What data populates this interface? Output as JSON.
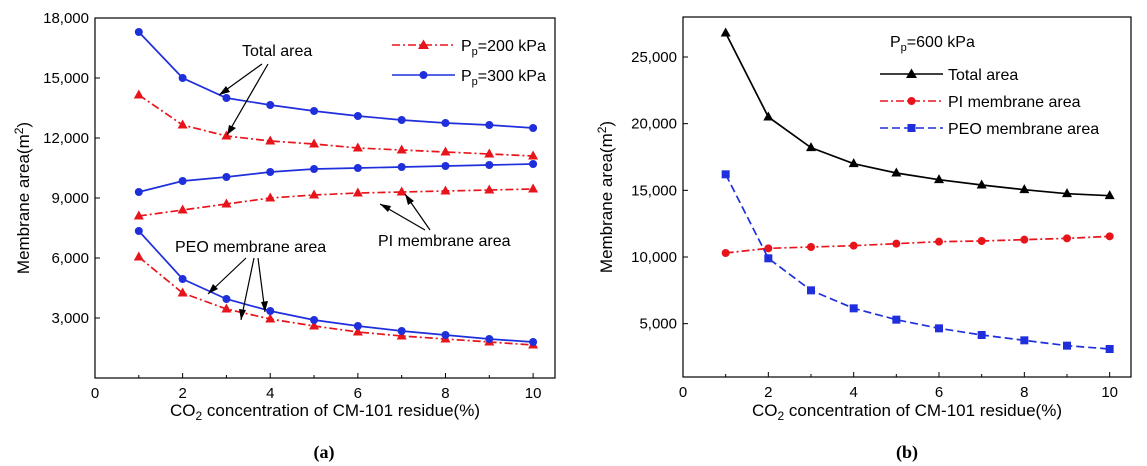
{
  "chart_data": [
    {
      "type": "line",
      "panel_label": "a",
      "xlabel_main": "CO",
      "xlabel_sub": "2",
      "xlabel_rest": " concentration of CM-101 residue(%)",
      "ylabel_main": "Membrane area(m",
      "ylabel_sup": "2",
      "ylabel_close": ")",
      "xlim": [
        0,
        10.5
      ],
      "ylim": [
        0,
        18000
      ],
      "x_ticks": [
        0,
        2,
        4,
        6,
        8,
        10
      ],
      "x_tick_labels": [
        "0",
        "2",
        "4",
        "6",
        "8",
        "10"
      ],
      "y_ticks": [
        3000,
        6000,
        9000,
        12000,
        15000,
        18000
      ],
      "y_tick_labels": [
        "3,000",
        "6,000",
        "9,000",
        "12,000",
        "15,000",
        "18,000"
      ],
      "x": [
        1,
        2,
        3,
        4,
        5,
        6,
        7,
        8,
        9,
        10
      ],
      "legend": [
        {
          "prefix": "P",
          "sub": "p",
          "text": "=200 kPa",
          "color": "#e8141c",
          "marker": "triangle",
          "dash": "8,3,2,3"
        },
        {
          "prefix": "P",
          "sub": "p",
          "text": "=300 kPa",
          "color": "#1f2fdc",
          "marker": "circle",
          "dash": ""
        }
      ],
      "series": [
        {
          "group": "Total area",
          "pressure": "200 kPa",
          "color": "#e8141c",
          "marker": "triangle",
          "dash": "8,3,2,3",
          "values": [
            14150,
            12650,
            12100,
            11850,
            11700,
            11500,
            11400,
            11300,
            11200,
            11100
          ]
        },
        {
          "group": "Total area",
          "pressure": "300 kPa",
          "color": "#1f2fdc",
          "marker": "circle",
          "dash": "",
          "values": [
            17300,
            15000,
            14000,
            13650,
            13350,
            13100,
            12900,
            12750,
            12650,
            12500
          ]
        },
        {
          "group": "PI membrane area",
          "pressure": "200 kPa",
          "color": "#e8141c",
          "marker": "triangle",
          "dash": "8,3,2,3",
          "values": [
            8100,
            8400,
            8700,
            9000,
            9150,
            9250,
            9300,
            9350,
            9400,
            9450
          ]
        },
        {
          "group": "PI membrane area",
          "pressure": "300 kPa",
          "color": "#1f2fdc",
          "marker": "circle",
          "dash": "",
          "values": [
            9300,
            9850,
            10050,
            10300,
            10450,
            10500,
            10550,
            10600,
            10650,
            10700
          ]
        },
        {
          "group": "PEO membrane area",
          "pressure": "200 kPa",
          "color": "#e8141c",
          "marker": "triangle",
          "dash": "8,3,2,3",
          "values": [
            6050,
            4250,
            3450,
            2950,
            2600,
            2300,
            2100,
            1950,
            1800,
            1650
          ]
        },
        {
          "group": "PEO membrane area",
          "pressure": "300 kPa",
          "color": "#1f2fdc",
          "marker": "circle",
          "dash": "",
          "values": [
            7350,
            4950,
            3950,
            3350,
            2900,
            2600,
            2350,
            2150,
            1950,
            1800
          ]
        }
      ],
      "annotations": {
        "total": "Total area",
        "pi": "PI membrane area",
        "peo": "PEO membrane area"
      }
    },
    {
      "type": "line",
      "panel_label": "b",
      "xlabel_main": "CO",
      "xlabel_sub": "2",
      "xlabel_rest": " concentration of CM-101 residue(%)",
      "ylabel_main": "Membrane area(m",
      "ylabel_sup": "2",
      "ylabel_close": ")",
      "xlim": [
        0,
        10.5
      ],
      "ylim": [
        1000,
        28000
      ],
      "x_ticks": [
        0,
        2,
        4,
        6,
        8,
        10
      ],
      "x_tick_labels": [
        "0",
        "2",
        "4",
        "6",
        "8",
        "10"
      ],
      "y_ticks": [
        5000,
        10000,
        15000,
        20000,
        25000
      ],
      "y_tick_labels": [
        "5,000",
        "10,000",
        "15,000",
        "20,000",
        "25,000"
      ],
      "x": [
        1,
        2,
        3,
        4,
        5,
        6,
        7,
        8,
        9,
        10
      ],
      "pressure_label": {
        "prefix": "P",
        "sub": "p",
        "text": "=600 kPa"
      },
      "legend": [
        {
          "text": "Total area",
          "color": "#000000",
          "marker": "triangle",
          "dash": ""
        },
        {
          "text": "PI membrane area",
          "color": "#e8141c",
          "marker": "circle",
          "dash": "8,3,2,3"
        },
        {
          "text": "PEO membrane area",
          "color": "#1f2fdc",
          "marker": "square",
          "dash": "8,4"
        }
      ],
      "series": [
        {
          "name": "Total area",
          "color": "#000000",
          "marker": "triangle",
          "dash": "",
          "values": [
            26800,
            20500,
            18200,
            17000,
            16300,
            15800,
            15400,
            15050,
            14750,
            14600
          ]
        },
        {
          "name": "PI membrane area",
          "color": "#e8141c",
          "marker": "circle",
          "dash": "8,3,2,3",
          "values": [
            10300,
            10650,
            10750,
            10850,
            11000,
            11150,
            11200,
            11300,
            11400,
            11550
          ]
        },
        {
          "name": "PEO membrane area",
          "color": "#1f2fdc",
          "marker": "square",
          "dash": "8,4",
          "values": [
            16200,
            9900,
            7500,
            6150,
            5300,
            4650,
            4150,
            3750,
            3350,
            3100
          ]
        }
      ]
    }
  ],
  "captions": {
    "a": "(a)",
    "b": "(b)"
  }
}
